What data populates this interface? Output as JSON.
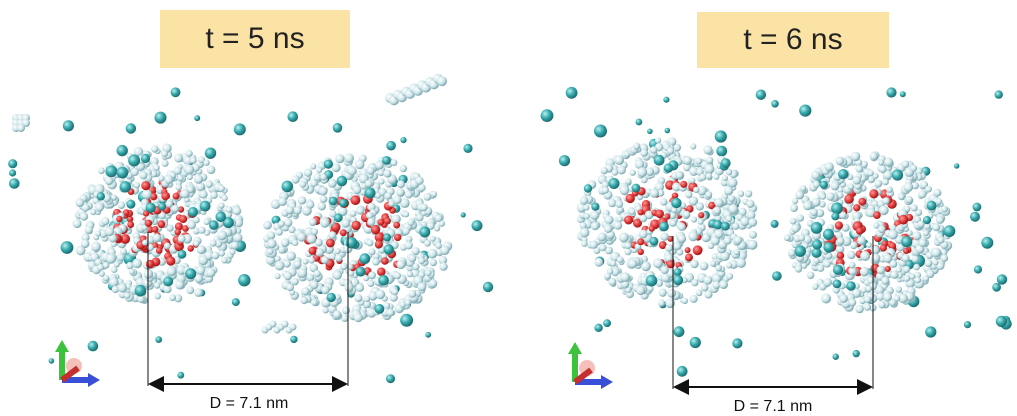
{
  "panels": [
    {
      "time_label": "t = 5 ns",
      "distance_label": "D = 7.1 nm"
    },
    {
      "time_label": "t = 6 ns",
      "distance_label": "D = 7.1 nm"
    }
  ]
}
